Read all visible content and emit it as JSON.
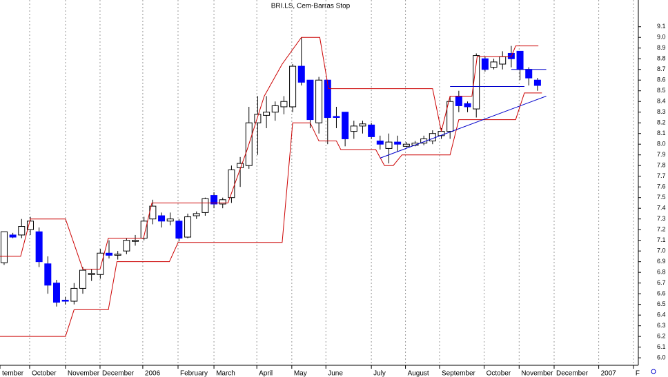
{
  "chart_data": {
    "type": "candlestick",
    "title": "BRI.LS, Cem-Barras Stop",
    "candles": {
      "open": [
        6.89,
        7.15,
        7.15,
        7.2,
        7.18,
        6.88,
        6.7,
        6.54,
        6.53,
        6.65,
        6.78,
        6.78,
        6.98,
        6.96,
        7.0,
        7.09,
        7.12,
        7.3,
        7.33,
        7.28,
        7.28,
        7.13,
        7.33,
        7.36,
        7.52,
        7.44,
        7.5,
        7.78,
        7.8,
        8.2,
        8.27,
        8.3,
        8.35,
        8.35,
        8.73,
        8.6,
        8.2,
        8.6,
        8.26,
        8.3,
        8.12,
        8.17,
        8.18,
        8.03,
        7.96,
        8.02,
        7.98,
        7.99,
        8.01,
        8.03,
        8.08,
        8.12,
        8.45,
        8.38,
        8.33,
        8.8,
        8.72,
        8.75,
        8.85,
        8.87,
        8.7,
        8.6
      ],
      "high": [
        7.18,
        7.17,
        7.3,
        7.32,
        7.22,
        6.95,
        6.73,
        6.57,
        6.7,
        6.85,
        6.83,
        7.02,
        7.1,
        7.0,
        7.12,
        7.15,
        7.32,
        7.48,
        7.36,
        7.36,
        7.3,
        7.35,
        7.37,
        7.5,
        7.55,
        7.5,
        7.8,
        7.88,
        8.35,
        8.45,
        8.45,
        8.4,
        8.45,
        8.75,
        9.0,
        8.6,
        8.63,
        8.6,
        8.35,
        8.3,
        8.22,
        8.22,
        8.2,
        8.08,
        8.1,
        8.08,
        8.02,
        8.03,
        8.08,
        8.13,
        8.15,
        8.45,
        8.5,
        8.4,
        8.85,
        8.82,
        8.8,
        8.87,
        8.92,
        8.87,
        8.72,
        8.62
      ],
      "low": [
        6.87,
        7.12,
        7.12,
        7.15,
        6.85,
        6.6,
        6.48,
        6.5,
        6.5,
        6.6,
        6.72,
        6.74,
        6.93,
        6.92,
        6.97,
        7.05,
        7.1,
        7.25,
        7.22,
        7.24,
        7.09,
        7.12,
        7.3,
        7.33,
        7.4,
        7.4,
        7.45,
        7.6,
        7.77,
        7.9,
        8.15,
        8.22,
        8.28,
        8.3,
        8.55,
        8.15,
        8.1,
        8.0,
        8.15,
        7.98,
        8.05,
        8.1,
        8.05,
        7.95,
        7.82,
        7.93,
        7.97,
        7.98,
        7.99,
        8.0,
        8.05,
        8.05,
        8.3,
        8.3,
        8.25,
        8.68,
        8.7,
        8.7,
        8.72,
        8.6,
        8.55,
        8.5
      ],
      "close": [
        7.18,
        7.13,
        7.23,
        7.28,
        6.9,
        6.68,
        6.52,
        6.53,
        6.65,
        6.82,
        6.79,
        6.98,
        6.96,
        6.97,
        7.1,
        7.1,
        7.28,
        7.42,
        7.28,
        7.3,
        7.12,
        7.32,
        7.35,
        7.49,
        7.44,
        7.48,
        7.76,
        7.82,
        8.2,
        8.28,
        8.3,
        8.36,
        8.4,
        8.73,
        8.58,
        8.23,
        8.6,
        8.25,
        8.25,
        8.05,
        8.17,
        8.19,
        8.07,
        8.0,
        8.02,
        8.0,
        8.0,
        8.01,
        8.05,
        8.1,
        8.12,
        8.4,
        8.36,
        8.35,
        8.83,
        8.7,
        8.77,
        8.82,
        8.8,
        8.7,
        8.62,
        8.55
      ]
    },
    "up_color": "#ffffff",
    "down_color": "#0000ff",
    "lines": [
      {
        "color": "#cc0000",
        "x": [
          -0.47,
          1.89,
          3,
          7.02,
          9,
          10.97,
          11.92,
          15.94,
          16.9,
          25.6,
          27.8,
          29.75,
          31.8,
          34,
          36.1,
          37.1,
          49,
          50,
          51,
          53.5,
          54.1,
          58,
          58.5,
          61.1
        ],
        "values": [
          6.95,
          6.95,
          7.3,
          7.3,
          6.83,
          6.83,
          7.12,
          7.12,
          7.45,
          7.45,
          7.95,
          8.45,
          8.75,
          9.0,
          9.0,
          8.52,
          8.52,
          8.12,
          8.45,
          8.45,
          8.82,
          8.82,
          8.92,
          8.92
        ]
      },
      {
        "color": "#cc0000",
        "x": [
          -0.47,
          7.02,
          8,
          11.92,
          12.9,
          18.9,
          19.9,
          31.8,
          33,
          35,
          36,
          38,
          38.5,
          42.5,
          43.5,
          44.5,
          45.5,
          51,
          52,
          58.5,
          59.5,
          61.5
        ],
        "values": [
          6.2,
          6.2,
          6.45,
          6.45,
          6.9,
          6.9,
          7.08,
          7.08,
          8.2,
          8.2,
          8.03,
          8.03,
          7.95,
          7.95,
          7.8,
          7.8,
          7.9,
          7.9,
          8.23,
          8.23,
          8.48,
          8.48
        ]
      },
      {
        "color": "#0000cc",
        "x": [
          43,
          62
        ],
        "values": [
          7.87,
          8.45
        ]
      },
      {
        "color": "#0000cc",
        "x": [
          51,
          59.5
        ],
        "values": [
          8.54,
          8.54
        ]
      },
      {
        "color": "#0000cc",
        "x": [
          58,
          62
        ],
        "values": [
          8.7,
          8.7
        ]
      }
    ],
    "xlim": [
      -0.47,
      72.53
    ],
    "xticks": [
      {
        "value": -0.47,
        "label": "tember"
      },
      {
        "value": 2.92,
        "label": "October"
      },
      {
        "value": 7.02,
        "label": "November"
      },
      {
        "value": 10.97,
        "label": "December"
      },
      {
        "value": 15.86,
        "label": "2006"
      },
      {
        "value": 19.89,
        "label": "February"
      },
      {
        "value": 24.0,
        "label": "March"
      },
      {
        "value": 28.9,
        "label": "April"
      },
      {
        "value": 32.9,
        "label": "May"
      },
      {
        "value": 36.8,
        "label": "June"
      },
      {
        "value": 42.0,
        "label": "July"
      },
      {
        "value": 45.9,
        "label": "August"
      },
      {
        "value": 49.8,
        "label": "September"
      },
      {
        "value": 54.9,
        "label": "October"
      },
      {
        "value": 58.9,
        "label": "November"
      },
      {
        "value": 62.9,
        "label": "December"
      },
      {
        "value": 68.0,
        "label": "2007"
      },
      {
        "value": 71.97,
        "label": "F"
      }
    ],
    "ylim": [
      5.93,
      9.35
    ],
    "yticks": [
      {
        "value": 6,
        "label": "6.0"
      },
      6.1,
      6.2,
      6.3,
      6.4,
      6.5,
      6.6,
      6.7,
      6.8,
      6.9,
      {
        "value": 7,
        "label": "7.0"
      },
      7.1,
      7.2,
      7.3,
      7.4,
      7.5,
      7.6,
      7.7,
      7.8,
      7.9,
      {
        "value": 8,
        "label": "8.0"
      },
      8.1,
      8.2,
      8.3,
      8.4,
      8.5,
      8.6,
      8.7,
      8.8,
      8.9,
      {
        "value": 9,
        "label": "9.0"
      },
      9.1
    ],
    "grid": true
  }
}
